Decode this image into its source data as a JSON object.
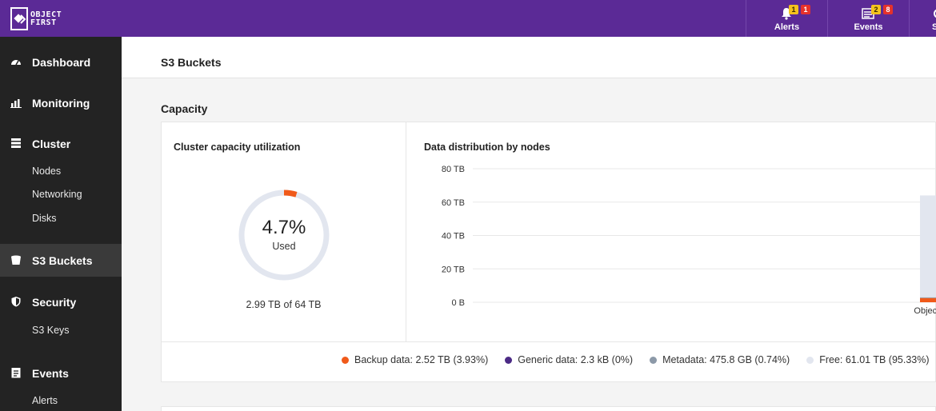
{
  "app": {
    "logo_line1": "OBJECT",
    "logo_line2": "FIRST"
  },
  "topnav": {
    "items": [
      {
        "label": "Alerts",
        "icon": "bell-icon",
        "badges": [
          {
            "value": "1",
            "color": "#f4c21d"
          },
          {
            "value": "1",
            "color": "#e5322b"
          }
        ]
      },
      {
        "label": "Events",
        "icon": "events-list-icon",
        "badges": [
          {
            "value": "2",
            "color": "#f4c21d"
          },
          {
            "value": "8",
            "color": "#e5322b"
          }
        ]
      },
      {
        "label": "S",
        "icon": "settings-icon"
      }
    ]
  },
  "sidebar": {
    "items": [
      {
        "label": "Dashboard",
        "icon": "dashboard-gauge-icon"
      },
      {
        "label": "Monitoring",
        "icon": "monitoring-chart-icon"
      },
      {
        "label": "Cluster",
        "icon": "cluster-server-icon",
        "children": [
          "Nodes",
          "Networking",
          "Disks"
        ]
      },
      {
        "label": "S3 Buckets",
        "icon": "bucket-icon",
        "active": true
      },
      {
        "label": "Security",
        "icon": "shield-icon",
        "children": [
          "S3 Keys"
        ]
      },
      {
        "label": "Events",
        "icon": "events-list-icon",
        "children": [
          "Alerts"
        ]
      }
    ]
  },
  "page": {
    "title": "S3 Buckets",
    "section": "Capacity"
  },
  "capacity": {
    "title": "Cluster capacity utilization",
    "percent_label": "4.7%",
    "used_fraction": 0.047,
    "used_label": "Used",
    "summary": "2.99 TB of 64 TB"
  },
  "chart_data": {
    "type": "bar",
    "title": "Data distribution by nodes",
    "categories": [
      "ObjectFirst"
    ],
    "stacked": true,
    "series": [
      {
        "name": "Backup data",
        "values": [
          2.52
        ],
        "color": "#f05a1a"
      },
      {
        "name": "Generic data",
        "values": [
          0
        ],
        "color": "#4b2a85"
      },
      {
        "name": "Metadata",
        "values": [
          0.4758
        ],
        "color": "#8c99a8"
      },
      {
        "name": "Free",
        "values": [
          61.01
        ],
        "color": "#e2e6ef"
      }
    ],
    "yticks": [
      "0 B",
      "20 TB",
      "40 TB",
      "60 TB",
      "80 TB"
    ],
    "ylim": [
      0,
      80
    ],
    "grid": true
  },
  "legend": [
    {
      "label": "Backup data: 2.52 TB (3.93%)",
      "color": "#f05a1a"
    },
    {
      "label": "Generic data: 2.3 kB (0%)",
      "color": "#4b2a85"
    },
    {
      "label": "Metadata: 475.8 GB (0.74%)",
      "color": "#8c99a8"
    },
    {
      "label": "Free: 61.01 TB (95.33%)",
      "color": "#e2e6ef"
    }
  ]
}
